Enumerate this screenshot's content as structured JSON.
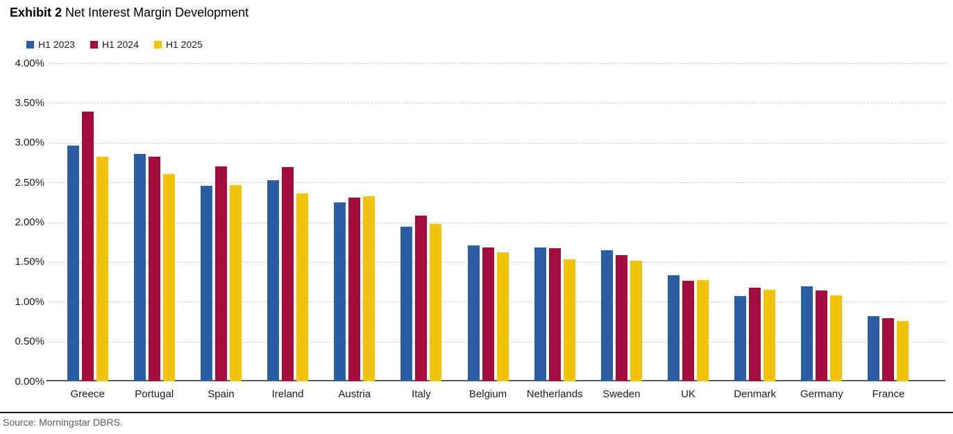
{
  "header": {
    "exhibit_label": "Exhibit 2",
    "title": "Net Interest Margin Development"
  },
  "source": {
    "text": "Source: Morningstar DBRS."
  },
  "chart_data": {
    "type": "bar",
    "title": "Net Interest Margin Development",
    "categories": [
      "Greece",
      "Portugal",
      "Spain",
      "Ireland",
      "Austria",
      "Italy",
      "Belgium",
      "Netherlands",
      "Sweden",
      "UK",
      "Denmark",
      "Germany",
      "France"
    ],
    "series": [
      {
        "name": "H1 2023",
        "color": "#2a5da4",
        "values": [
          2.96,
          2.86,
          2.46,
          2.53,
          2.25,
          1.94,
          1.71,
          1.68,
          1.65,
          1.33,
          1.07,
          1.19,
          0.82
        ]
      },
      {
        "name": "H1 2024",
        "color": "#a30d3d",
        "values": [
          3.39,
          2.82,
          2.7,
          2.69,
          2.31,
          2.08,
          1.68,
          1.67,
          1.59,
          1.26,
          1.18,
          1.14,
          0.79
        ]
      },
      {
        "name": "H1 2025",
        "color": "#efc409",
        "values": [
          2.82,
          2.61,
          2.47,
          2.36,
          2.33,
          1.98,
          1.62,
          1.53,
          1.52,
          1.27,
          1.15,
          1.08,
          0.76
        ]
      }
    ],
    "ylabel": "",
    "xlabel": "",
    "ylim": [
      0,
      4
    ],
    "yticks": [
      "4.00%",
      "3.50%",
      "3.00%",
      "2.50%",
      "2.00%",
      "1.50%",
      "1.00%",
      "0.50%",
      "0.00%"
    ],
    "ytick_values": [
      4.0,
      3.5,
      3.0,
      2.5,
      2.0,
      1.5,
      1.0,
      0.5,
      0.0
    ],
    "grid": "horizontal-dashed",
    "legend_position": "top-left",
    "unit": "percent"
  }
}
